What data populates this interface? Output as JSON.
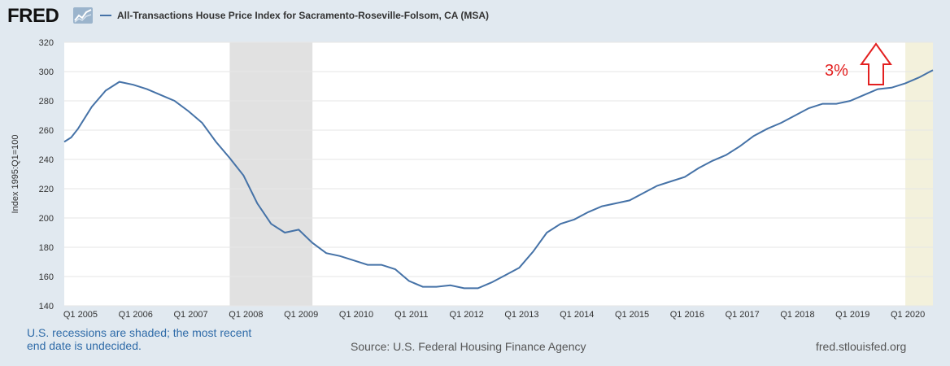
{
  "header": {
    "logo_text": "FRED",
    "logo_icon": "fred-graph-icon",
    "legend_label": "All-Transactions House Price Index for Sacramento-Roseville-Folsom, CA (MSA)",
    "series_color": "#4572a7"
  },
  "annotation": {
    "text": "3%",
    "color": "#e32020",
    "icon": "arrow-up-icon"
  },
  "footer": {
    "recession_note_line1": "U.S. recessions are shaded; the most recent",
    "recession_note_line2": "end date is undecided.",
    "source": "Source: U.S. Federal Housing Finance Agency",
    "site": "fred.stlouisfed.org"
  },
  "chart_data": {
    "type": "line",
    "title": "",
    "xlabel": "",
    "ylabel": "Index 1995:Q1=100",
    "ylim": [
      140,
      320
    ],
    "yticks": [
      140,
      160,
      180,
      200,
      220,
      240,
      260,
      280,
      300,
      320
    ],
    "xlim": [
      2004.75,
      2020.5
    ],
    "xticks": [
      {
        "x": 2005.0,
        "label": "Q1 2005"
      },
      {
        "x": 2006.0,
        "label": "Q1 2006"
      },
      {
        "x": 2007.0,
        "label": "Q1 2007"
      },
      {
        "x": 2008.0,
        "label": "Q1 2008"
      },
      {
        "x": 2009.0,
        "label": "Q1 2009"
      },
      {
        "x": 2010.0,
        "label": "Q1 2010"
      },
      {
        "x": 2011.0,
        "label": "Q1 2011"
      },
      {
        "x": 2012.0,
        "label": "Q1 2012"
      },
      {
        "x": 2013.0,
        "label": "Q1 2013"
      },
      {
        "x": 2014.0,
        "label": "Q1 2014"
      },
      {
        "x": 2015.0,
        "label": "Q1 2015"
      },
      {
        "x": 2016.0,
        "label": "Q1 2016"
      },
      {
        "x": 2017.0,
        "label": "Q1 2017"
      },
      {
        "x": 2018.0,
        "label": "Q1 2018"
      },
      {
        "x": 2019.0,
        "label": "Q1 2019"
      },
      {
        "x": 2020.0,
        "label": "Q1 2020"
      }
    ],
    "grid": true,
    "recession_bands": [
      {
        "start": 2007.75,
        "end": 2009.25,
        "color": "#e1e1e1"
      },
      {
        "start": 2020.0,
        "end": 2020.5,
        "color": "#f3f1dc"
      }
    ],
    "series": [
      {
        "color": "#4572a7",
        "points": [
          [
            2004.75,
            252
          ],
          [
            2004.875,
            255
          ],
          [
            2005.0,
            261
          ],
          [
            2005.25,
            276
          ],
          [
            2005.5,
            287
          ],
          [
            2005.75,
            293
          ],
          [
            2006.0,
            291
          ],
          [
            2006.25,
            288
          ],
          [
            2006.5,
            284
          ],
          [
            2006.75,
            280
          ],
          [
            2007.0,
            273
          ],
          [
            2007.25,
            265
          ],
          [
            2007.5,
            252
          ],
          [
            2007.75,
            241
          ],
          [
            2008.0,
            229
          ],
          [
            2008.25,
            210
          ],
          [
            2008.5,
            196
          ],
          [
            2008.75,
            190
          ],
          [
            2009.0,
            192
          ],
          [
            2009.25,
            183
          ],
          [
            2009.5,
            176
          ],
          [
            2009.75,
            174
          ],
          [
            2010.0,
            171
          ],
          [
            2010.25,
            168
          ],
          [
            2010.5,
            168
          ],
          [
            2010.75,
            165
          ],
          [
            2011.0,
            157
          ],
          [
            2011.25,
            153
          ],
          [
            2011.5,
            153
          ],
          [
            2011.75,
            154
          ],
          [
            2012.0,
            152
          ],
          [
            2012.25,
            152
          ],
          [
            2012.5,
            156
          ],
          [
            2012.75,
            161
          ],
          [
            2013.0,
            166
          ],
          [
            2013.25,
            177
          ],
          [
            2013.5,
            190
          ],
          [
            2013.75,
            196
          ],
          [
            2014.0,
            199
          ],
          [
            2014.25,
            204
          ],
          [
            2014.5,
            208
          ],
          [
            2014.75,
            210
          ],
          [
            2015.0,
            212
          ],
          [
            2015.25,
            217
          ],
          [
            2015.5,
            222
          ],
          [
            2015.75,
            225
          ],
          [
            2016.0,
            228
          ],
          [
            2016.25,
            234
          ],
          [
            2016.5,
            239
          ],
          [
            2016.75,
            243
          ],
          [
            2017.0,
            249
          ],
          [
            2017.25,
            256
          ],
          [
            2017.5,
            261
          ],
          [
            2017.75,
            265
          ],
          [
            2018.0,
            270
          ],
          [
            2018.25,
            275
          ],
          [
            2018.5,
            278
          ],
          [
            2018.75,
            278
          ],
          [
            2019.0,
            280
          ],
          [
            2019.25,
            284
          ],
          [
            2019.5,
            288
          ],
          [
            2019.75,
            289
          ],
          [
            2020.0,
            292
          ],
          [
            2020.25,
            296
          ],
          [
            2020.5,
            301
          ]
        ]
      }
    ]
  }
}
